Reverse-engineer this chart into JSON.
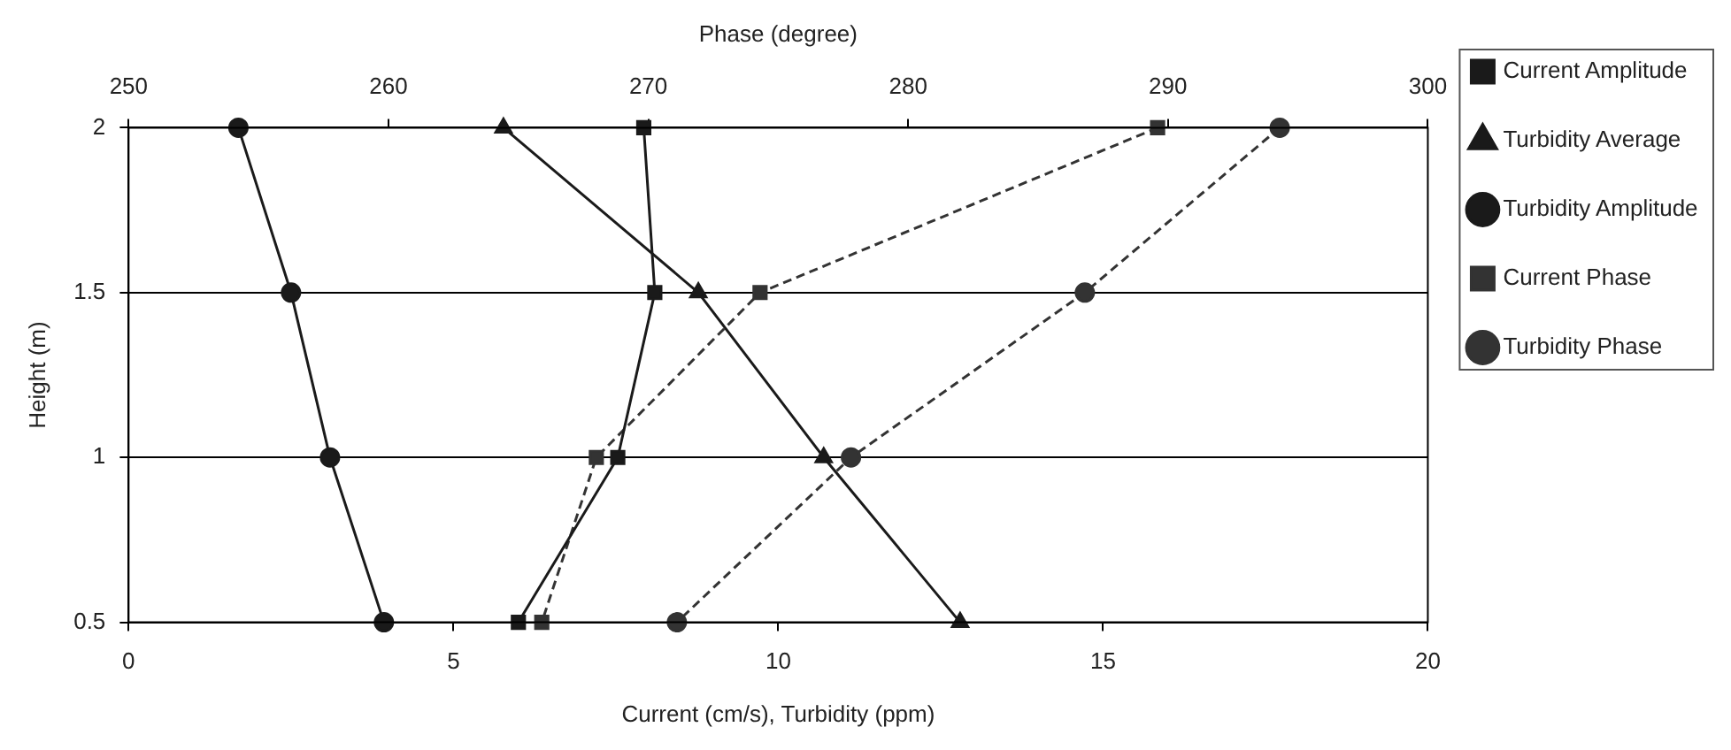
{
  "chart_data": {
    "type": "line",
    "xlabel": "Current (cm/s), Turbidity (ppm)",
    "x2label": "Phase (degree)",
    "ylabel": "Height (m)",
    "xlim": [
      0,
      20
    ],
    "xticks": [
      0,
      5,
      10,
      15,
      20
    ],
    "x2lim": [
      250,
      300
    ],
    "x2ticks": [
      250,
      260,
      270,
      280,
      290,
      300
    ],
    "ylim": [
      0.5,
      2
    ],
    "yticks": [
      0.5,
      1,
      1.5,
      2
    ],
    "grid": "y",
    "legend": "right",
    "series": [
      {
        "name": "Current Amplitude",
        "color": "#1a1a1a",
        "x": [
          7.93,
          8.1,
          7.53,
          6.0
        ],
        "values": [
          2,
          1.5,
          1,
          0.5
        ],
        "marker": "square",
        "line_style": "solid"
      },
      {
        "name": "Turbidity Average",
        "color": "#1a1a1a",
        "x": [
          5.77,
          8.77,
          10.7,
          12.8
        ],
        "values": [
          2,
          1.5,
          1,
          0.5
        ],
        "marker": "triangle",
        "line_style": "solid"
      },
      {
        "name": "Turbidity Amplitude",
        "color": "#1a1a1a",
        "x": [
          1.69,
          2.5,
          3.1,
          3.93
        ],
        "values": [
          2,
          1.5,
          1,
          0.5
        ],
        "marker": "circle",
        "line_style": "solid"
      },
      {
        "name": "Current Phase",
        "color": "#333333",
        "x": [
          289.6,
          274.3,
          268,
          265.9
        ],
        "values": [
          2,
          1.5,
          1,
          0.5
        ],
        "marker": "square",
        "line_style": "dashed",
        "axis": "x2"
      },
      {
        "name": "Turbidity Phase",
        "color": "#333333",
        "x": [
          294.3,
          286.8,
          277.8,
          271.1
        ],
        "values": [
          2,
          1.5,
          1,
          0.5
        ],
        "marker": "circle",
        "line_style": "dashed",
        "axis": "x2"
      }
    ]
  }
}
